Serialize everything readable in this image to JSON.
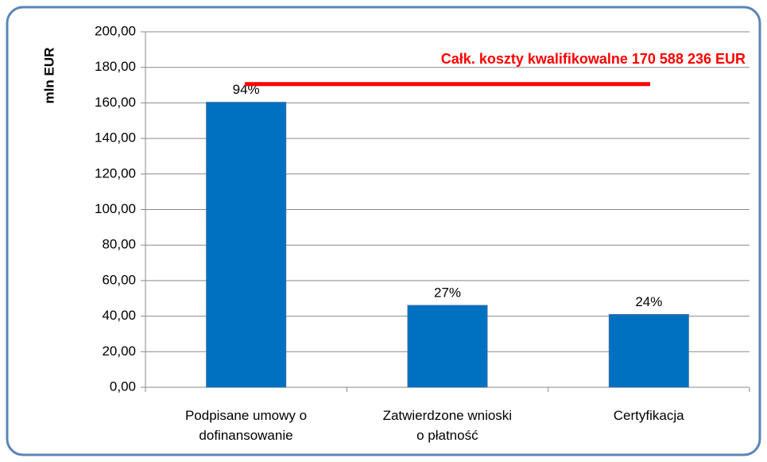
{
  "chart_data": {
    "type": "bar",
    "y_label": "mln EUR",
    "categories": [
      "Podpisane umowy o\ndofinansowanie",
      "Zatwierdzone wnioski\no płatność",
      "Certyfikacja"
    ],
    "values": [
      160.35,
      46.06,
      40.94
    ],
    "bar_labels": [
      "94%",
      "27%",
      "24%"
    ],
    "color": "#0070c0",
    "ylim": [
      0,
      200
    ],
    "yticks": [
      {
        "value": 0,
        "label": "0,00"
      },
      {
        "value": 20,
        "label": "20,00"
      },
      {
        "value": 40,
        "label": "40,00"
      },
      {
        "value": 60,
        "label": "60,00"
      },
      {
        "value": 80,
        "label": "80,00"
      },
      {
        "value": 100,
        "label": "100,00"
      },
      {
        "value": 120,
        "label": "120,00"
      },
      {
        "value": 140,
        "label": "140,00"
      },
      {
        "value": 160,
        "label": "160,00"
      },
      {
        "value": 180,
        "label": "180,00"
      },
      {
        "value": 200,
        "label": "200,00"
      }
    ],
    "grid": true,
    "reference_line": {
      "value": 170.59,
      "label": "Całk. koszty kwalifikowalne 170 588 236 EUR",
      "color": "#ff0000"
    }
  }
}
